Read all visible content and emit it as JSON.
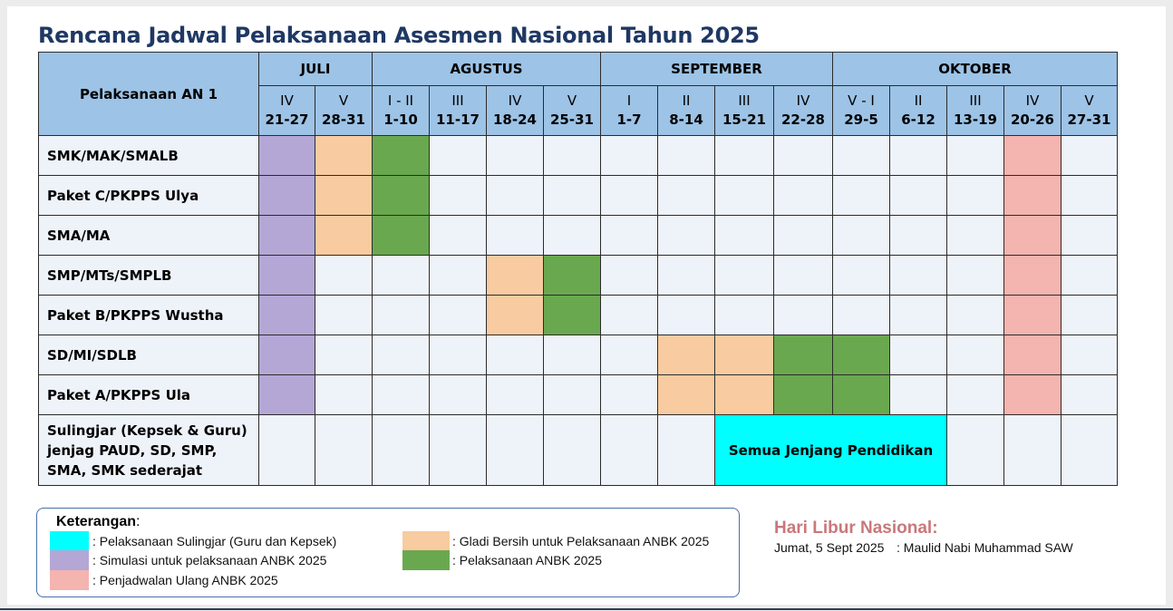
{
  "title": "Rencana Jadwal Pelaksanaan Asesmen Nasional Tahun 2025",
  "header": {
    "row_header": "Pelaksanaan AN 1",
    "months": [
      {
        "name": "JULI",
        "span": 2
      },
      {
        "name": "AGUSTUS",
        "span": 4
      },
      {
        "name": "SEPTEMBER",
        "span": 4
      },
      {
        "name": "OKTOBER",
        "span": 5
      }
    ],
    "weeks": [
      {
        "week": "IV",
        "dates": "21-27"
      },
      {
        "week": "V",
        "dates": "28-31"
      },
      {
        "week": "I - II",
        "dates": "1-10"
      },
      {
        "week": "III",
        "dates": "11-17"
      },
      {
        "week": "IV",
        "dates": "18-24"
      },
      {
        "week": "V",
        "dates": "25-31"
      },
      {
        "week": "I",
        "dates": "1-7"
      },
      {
        "week": "II",
        "dates": "8-14"
      },
      {
        "week": "III",
        "dates": "15-21"
      },
      {
        "week": "IV",
        "dates": "22-28"
      },
      {
        "week": "V - I",
        "dates": "29-5"
      },
      {
        "week": "II",
        "dates": "6-12"
      },
      {
        "week": "III",
        "dates": "13-19"
      },
      {
        "week": "IV",
        "dates": "20-26"
      },
      {
        "week": "V",
        "dates": "27-31"
      }
    ]
  },
  "colors": {
    "header_bg": "#9dc3e6",
    "body_bg": "#eef2f9",
    "sim": "#b4a7d6",
    "gladi": "#f8cba0",
    "pelaksanaan": "#6aa84f",
    "ulang": "#f4b4b0",
    "sulingjar": "#00ffff",
    "title": "#1f3864",
    "holiday": "#c9787b"
  },
  "rows": [
    {
      "label": "SMK/MAK/SMALB",
      "cells": [
        "sim",
        "gladi",
        "pelaksanaan",
        "",
        "",
        "",
        "",
        "",
        "",
        "",
        "",
        "",
        "",
        "ulang",
        ""
      ]
    },
    {
      "label": "Paket C/PKPPS Ulya",
      "cells": [
        "sim",
        "gladi",
        "pelaksanaan",
        "",
        "",
        "",
        "",
        "",
        "",
        "",
        "",
        "",
        "",
        "ulang",
        ""
      ]
    },
    {
      "label": "SMA/MA",
      "cells": [
        "sim",
        "gladi",
        "pelaksanaan",
        "",
        "",
        "",
        "",
        "",
        "",
        "",
        "",
        "",
        "",
        "ulang",
        ""
      ]
    },
    {
      "label": "SMP/MTs/SMPLB",
      "cells": [
        "sim",
        "",
        "",
        "",
        "gladi",
        "pelaksanaan",
        "",
        "",
        "",
        "",
        "",
        "",
        "",
        "ulang",
        ""
      ]
    },
    {
      "label": "Paket B/PKPPS Wustha",
      "cells": [
        "sim",
        "",
        "",
        "",
        "gladi",
        "pelaksanaan",
        "",
        "",
        "",
        "",
        "",
        "",
        "",
        "ulang",
        ""
      ]
    },
    {
      "label": "SD/MI/SDLB",
      "cells": [
        "sim",
        "",
        "",
        "",
        "",
        "",
        "",
        "gladi",
        "gladi",
        "pelaksanaan",
        "pelaksanaan",
        "",
        "",
        "ulang",
        ""
      ]
    },
    {
      "label": "Paket A/PKPPS Ula",
      "cells": [
        "sim",
        "",
        "",
        "",
        "",
        "",
        "",
        "gladi",
        "gladi",
        "pelaksanaan",
        "pelaksanaan",
        "",
        "",
        "ulang",
        ""
      ]
    }
  ],
  "last_row": {
    "label": "Sulingjar (Kepsek & Guru)\njenjag PAUD, SD, SMP,\nSMA, SMK sederajat",
    "merged_text": "Semua Jenjang Pendidikan",
    "merged_start": 8,
    "merged_span": 4
  },
  "legend": {
    "title": "Keterangan",
    "items": [
      {
        "key": "sulingjar",
        "text": ": Pelaksanaan Sulingjar (Guru dan Kepsek)"
      },
      {
        "key": "sim",
        "text": ": Simulasi untuk pelaksanaan ANBK 2025"
      },
      {
        "key": "ulang",
        "text": ": Penjadwalan Ulang ANBK 2025"
      },
      {
        "key": "gladi",
        "text": ": Gladi Bersih untuk Pelaksanaan ANBK 2025"
      },
      {
        "key": "pelaksanaan",
        "text": ": Pelaksanaan ANBK 2025"
      }
    ]
  },
  "holiday": {
    "title": "Hari Libur Nasional:",
    "date": "Jumat, 5 Sept 2025",
    "name": ": Maulid Nabi Muhammad SAW"
  }
}
